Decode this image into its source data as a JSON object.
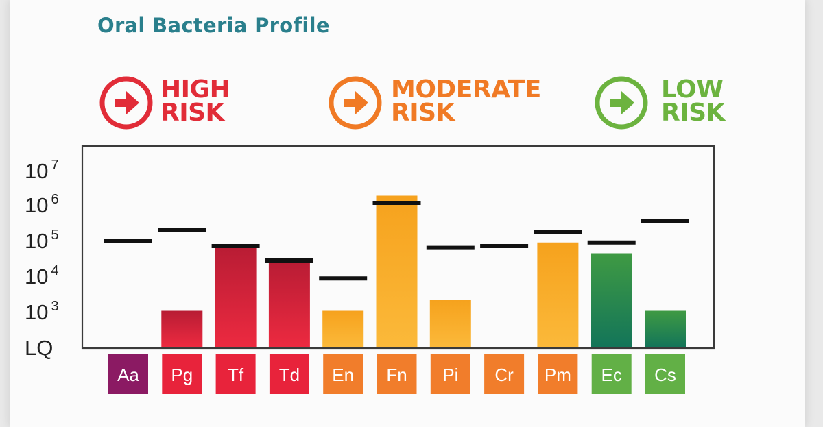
{
  "title": "Oral Bacteria Profile",
  "legend": [
    {
      "line1": "HIGH",
      "line2": "RISK",
      "color": "#e12c38",
      "icon": "arrow-right-circle-icon"
    },
    {
      "line1": "MODERATE",
      "line2": "RISK",
      "color": "#f07a25",
      "icon": "arrow-right-circle-icon"
    },
    {
      "line1": "LOW",
      "line2": "RISK",
      "color": "#6cb33f",
      "icon": "arrow-right-circle-icon"
    }
  ],
  "chart_data": {
    "type": "bar",
    "title": "Oral Bacteria Profile",
    "categories": [
      "Aa",
      "Pg",
      "Tf",
      "Td",
      "En",
      "Fn",
      "Pi",
      "Cr",
      "Pm",
      "Ec",
      "Cs"
    ],
    "category_risk": [
      "high",
      "high",
      "high",
      "high",
      "moderate",
      "moderate",
      "moderate",
      "moderate",
      "moderate",
      "low",
      "low"
    ],
    "category_colors": [
      "#8b1a63",
      "#e8233b",
      "#e8233b",
      "#e8233b",
      "#f17d2b",
      "#f17d2b",
      "#f17d2b",
      "#f17d2b",
      "#f17d2b",
      "#62b046",
      "#62b046"
    ],
    "values_log10": [
      null,
      3.0,
      4.8,
      4.4,
      3.0,
      6.2,
      3.3,
      null,
      4.9,
      4.6,
      3.0
    ],
    "threshold_log10": [
      4.95,
      5.25,
      4.8,
      4.4,
      3.9,
      6.0,
      4.75,
      4.8,
      5.2,
      4.9,
      5.5
    ],
    "y_scale": "log",
    "y_ticks": [
      {
        "label": "LQ",
        "exp": ""
      },
      {
        "label": "10",
        "exp": "3"
      },
      {
        "label": "10",
        "exp": "4"
      },
      {
        "label": "10",
        "exp": "5"
      },
      {
        "label": "10",
        "exp": "6"
      },
      {
        "label": "10",
        "exp": "7"
      }
    ],
    "ylim_log10": [
      2,
      7.3
    ],
    "grid": false,
    "legend_position": "top"
  }
}
